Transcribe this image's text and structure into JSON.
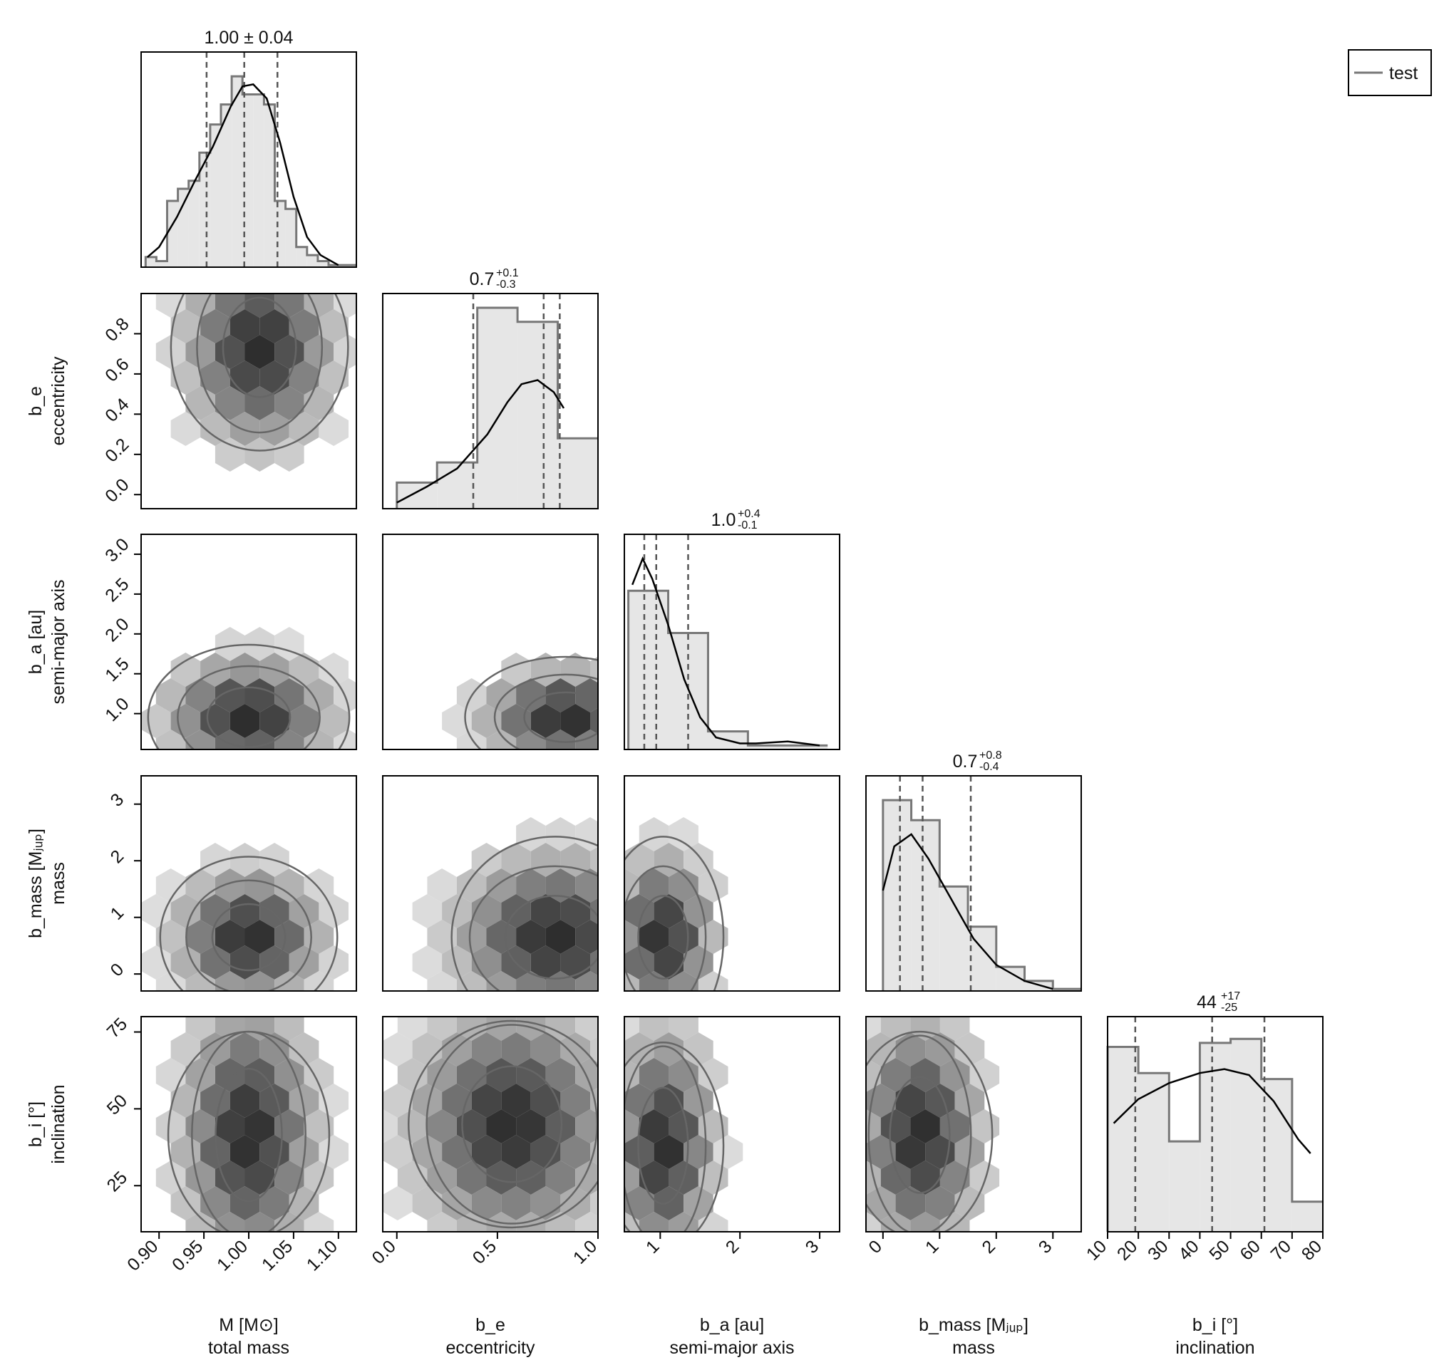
{
  "legend": {
    "label": "test",
    "placement": "top-right"
  },
  "colors": {
    "frame": "#000000",
    "hist_fill": "#e6e6e6",
    "hist_step": "#777777",
    "kde": "#000000",
    "quantile": "#555555",
    "contour": "#666666"
  },
  "parameters": [
    {
      "name": "M [M⊙]",
      "desc": "total mass"
    },
    {
      "name": "b_e",
      "desc": "eccentricity"
    },
    {
      "name": "b_a [au]",
      "desc": "semi-major axis"
    },
    {
      "name": "b_mass [Mⱼᵤₚ]",
      "desc": "mass"
    },
    {
      "name": "b_i [°]",
      "desc": "inclination"
    }
  ],
  "chart_data": {
    "type": "corner",
    "titles": [
      {
        "main": "1.00 ± 0.04"
      },
      {
        "main": "0.7",
        "plus": "+0.1",
        "minus": "-0.3"
      },
      {
        "main": "1.0",
        "plus": "+0.4",
        "minus": "-0.1"
      },
      {
        "main": "0.7",
        "plus": "+0.8",
        "minus": "-0.4"
      },
      {
        "main": "44",
        "plus": "+17",
        "minus": "-25"
      }
    ],
    "ranges": [
      [
        0.88,
        1.12
      ],
      [
        -0.07,
        1.0
      ],
      [
        0.55,
        3.25
      ],
      [
        -0.3,
        3.5
      ],
      [
        10,
        80
      ]
    ],
    "ticks": [
      [
        "0.90",
        "0.95",
        "1.00",
        "1.05",
        "1.10"
      ],
      [
        "0.0",
        "0.5",
        "1.0"
      ],
      [
        "1",
        "2",
        "3"
      ],
      [
        "0",
        "1",
        "2",
        "3"
      ],
      [
        "10",
        "20",
        "30",
        "40",
        "50",
        "60",
        "70",
        "80"
      ]
    ],
    "ytick_values": [
      null,
      [
        "0.0",
        "0.2",
        "0.4",
        "0.6",
        "0.8"
      ],
      [
        "1.0",
        "1.5",
        "2.0",
        "2.5",
        "3.0"
      ],
      [
        "0",
        "1",
        "2",
        "3"
      ],
      [
        "25",
        "50",
        "75"
      ]
    ],
    "histograms": [
      {
        "edges": [
          0.885,
          0.897,
          0.909,
          0.921,
          0.933,
          0.945,
          0.957,
          0.969,
          0.981,
          0.993,
          1.005,
          1.017,
          1.029,
          1.041,
          1.053,
          1.065,
          1.077,
          1.089,
          1.101,
          1.113,
          1.12
        ],
        "heights": [
          0.05,
          0.03,
          0.33,
          0.39,
          0.43,
          0.57,
          0.71,
          0.81,
          0.95,
          0.86,
          0.86,
          0.81,
          0.33,
          0.29,
          0.1,
          0.06,
          0.03,
          0.01,
          0.01,
          0.01
        ],
        "kde": [
          [
            0.887,
            0.05
          ],
          [
            0.9,
            0.1
          ],
          [
            0.92,
            0.25
          ],
          [
            0.94,
            0.43
          ],
          [
            0.96,
            0.6
          ],
          [
            0.98,
            0.8
          ],
          [
            0.993,
            0.9
          ],
          [
            1.005,
            0.91
          ],
          [
            1.02,
            0.84
          ],
          [
            1.035,
            0.62
          ],
          [
            1.05,
            0.35
          ],
          [
            1.065,
            0.15
          ],
          [
            1.08,
            0.06
          ],
          [
            1.1,
            0.01
          ]
        ],
        "quantiles": [
          0.953,
          0.995,
          1.032
        ],
        "ymax": 1.0
      },
      {
        "edges": [
          0.0,
          0.2,
          0.4,
          0.6,
          0.8,
          1.0
        ],
        "heights": [
          0.13,
          0.23,
          1.0,
          0.93,
          0.35
        ],
        "kde": [
          [
            0.0,
            0.03
          ],
          [
            0.15,
            0.11
          ],
          [
            0.3,
            0.2
          ],
          [
            0.45,
            0.37
          ],
          [
            0.55,
            0.53
          ],
          [
            0.62,
            0.62
          ],
          [
            0.7,
            0.64
          ],
          [
            0.78,
            0.58
          ],
          [
            0.83,
            0.5
          ]
        ],
        "quantiles": [
          0.38,
          0.73,
          0.81
        ],
        "ymax": 1.0
      },
      {
        "edges": [
          0.6,
          1.1,
          1.6,
          2.1,
          2.6,
          3.1
        ],
        "heights": [
          0.79,
          0.58,
          0.09,
          0.02,
          0.02
        ],
        "kde": [
          [
            0.65,
            0.82
          ],
          [
            0.78,
            0.95
          ],
          [
            0.9,
            0.85
          ],
          [
            1.1,
            0.62
          ],
          [
            1.3,
            0.35
          ],
          [
            1.5,
            0.16
          ],
          [
            1.7,
            0.06
          ],
          [
            2.0,
            0.03
          ],
          [
            2.2,
            0.03
          ],
          [
            2.6,
            0.04
          ],
          [
            3.0,
            0.02
          ]
        ],
        "quantiles": [
          0.8,
          0.95,
          1.35
        ],
        "ymax": 1.0
      },
      {
        "edges": [
          0.0,
          0.5,
          1.0,
          1.5,
          2.0,
          2.5,
          3.0,
          3.5
        ],
        "heights": [
          0.95,
          0.85,
          0.52,
          0.32,
          0.12,
          0.05,
          0.01
        ],
        "kde": [
          [
            0.0,
            0.5
          ],
          [
            0.2,
            0.72
          ],
          [
            0.5,
            0.78
          ],
          [
            0.8,
            0.66
          ],
          [
            1.2,
            0.46
          ],
          [
            1.6,
            0.26
          ],
          [
            2.0,
            0.13
          ],
          [
            2.5,
            0.05
          ],
          [
            3.0,
            0.01
          ]
        ],
        "quantiles": [
          0.3,
          0.7,
          1.55
        ],
        "ymax": 1.0
      },
      {
        "edges": [
          10,
          20,
          30,
          40,
          50,
          60,
          70,
          80
        ],
        "heights": [
          0.92,
          0.79,
          0.45,
          0.94,
          0.96,
          0.76,
          0.15
        ],
        "kde": [
          [
            12,
            0.54
          ],
          [
            20,
            0.66
          ],
          [
            30,
            0.74
          ],
          [
            40,
            0.79
          ],
          [
            48,
            0.81
          ],
          [
            56,
            0.78
          ],
          [
            64,
            0.65
          ],
          [
            72,
            0.46
          ],
          [
            76,
            0.39
          ]
        ],
        "quantiles": [
          19,
          44,
          61
        ],
        "ymax": 1.0
      }
    ]
  }
}
